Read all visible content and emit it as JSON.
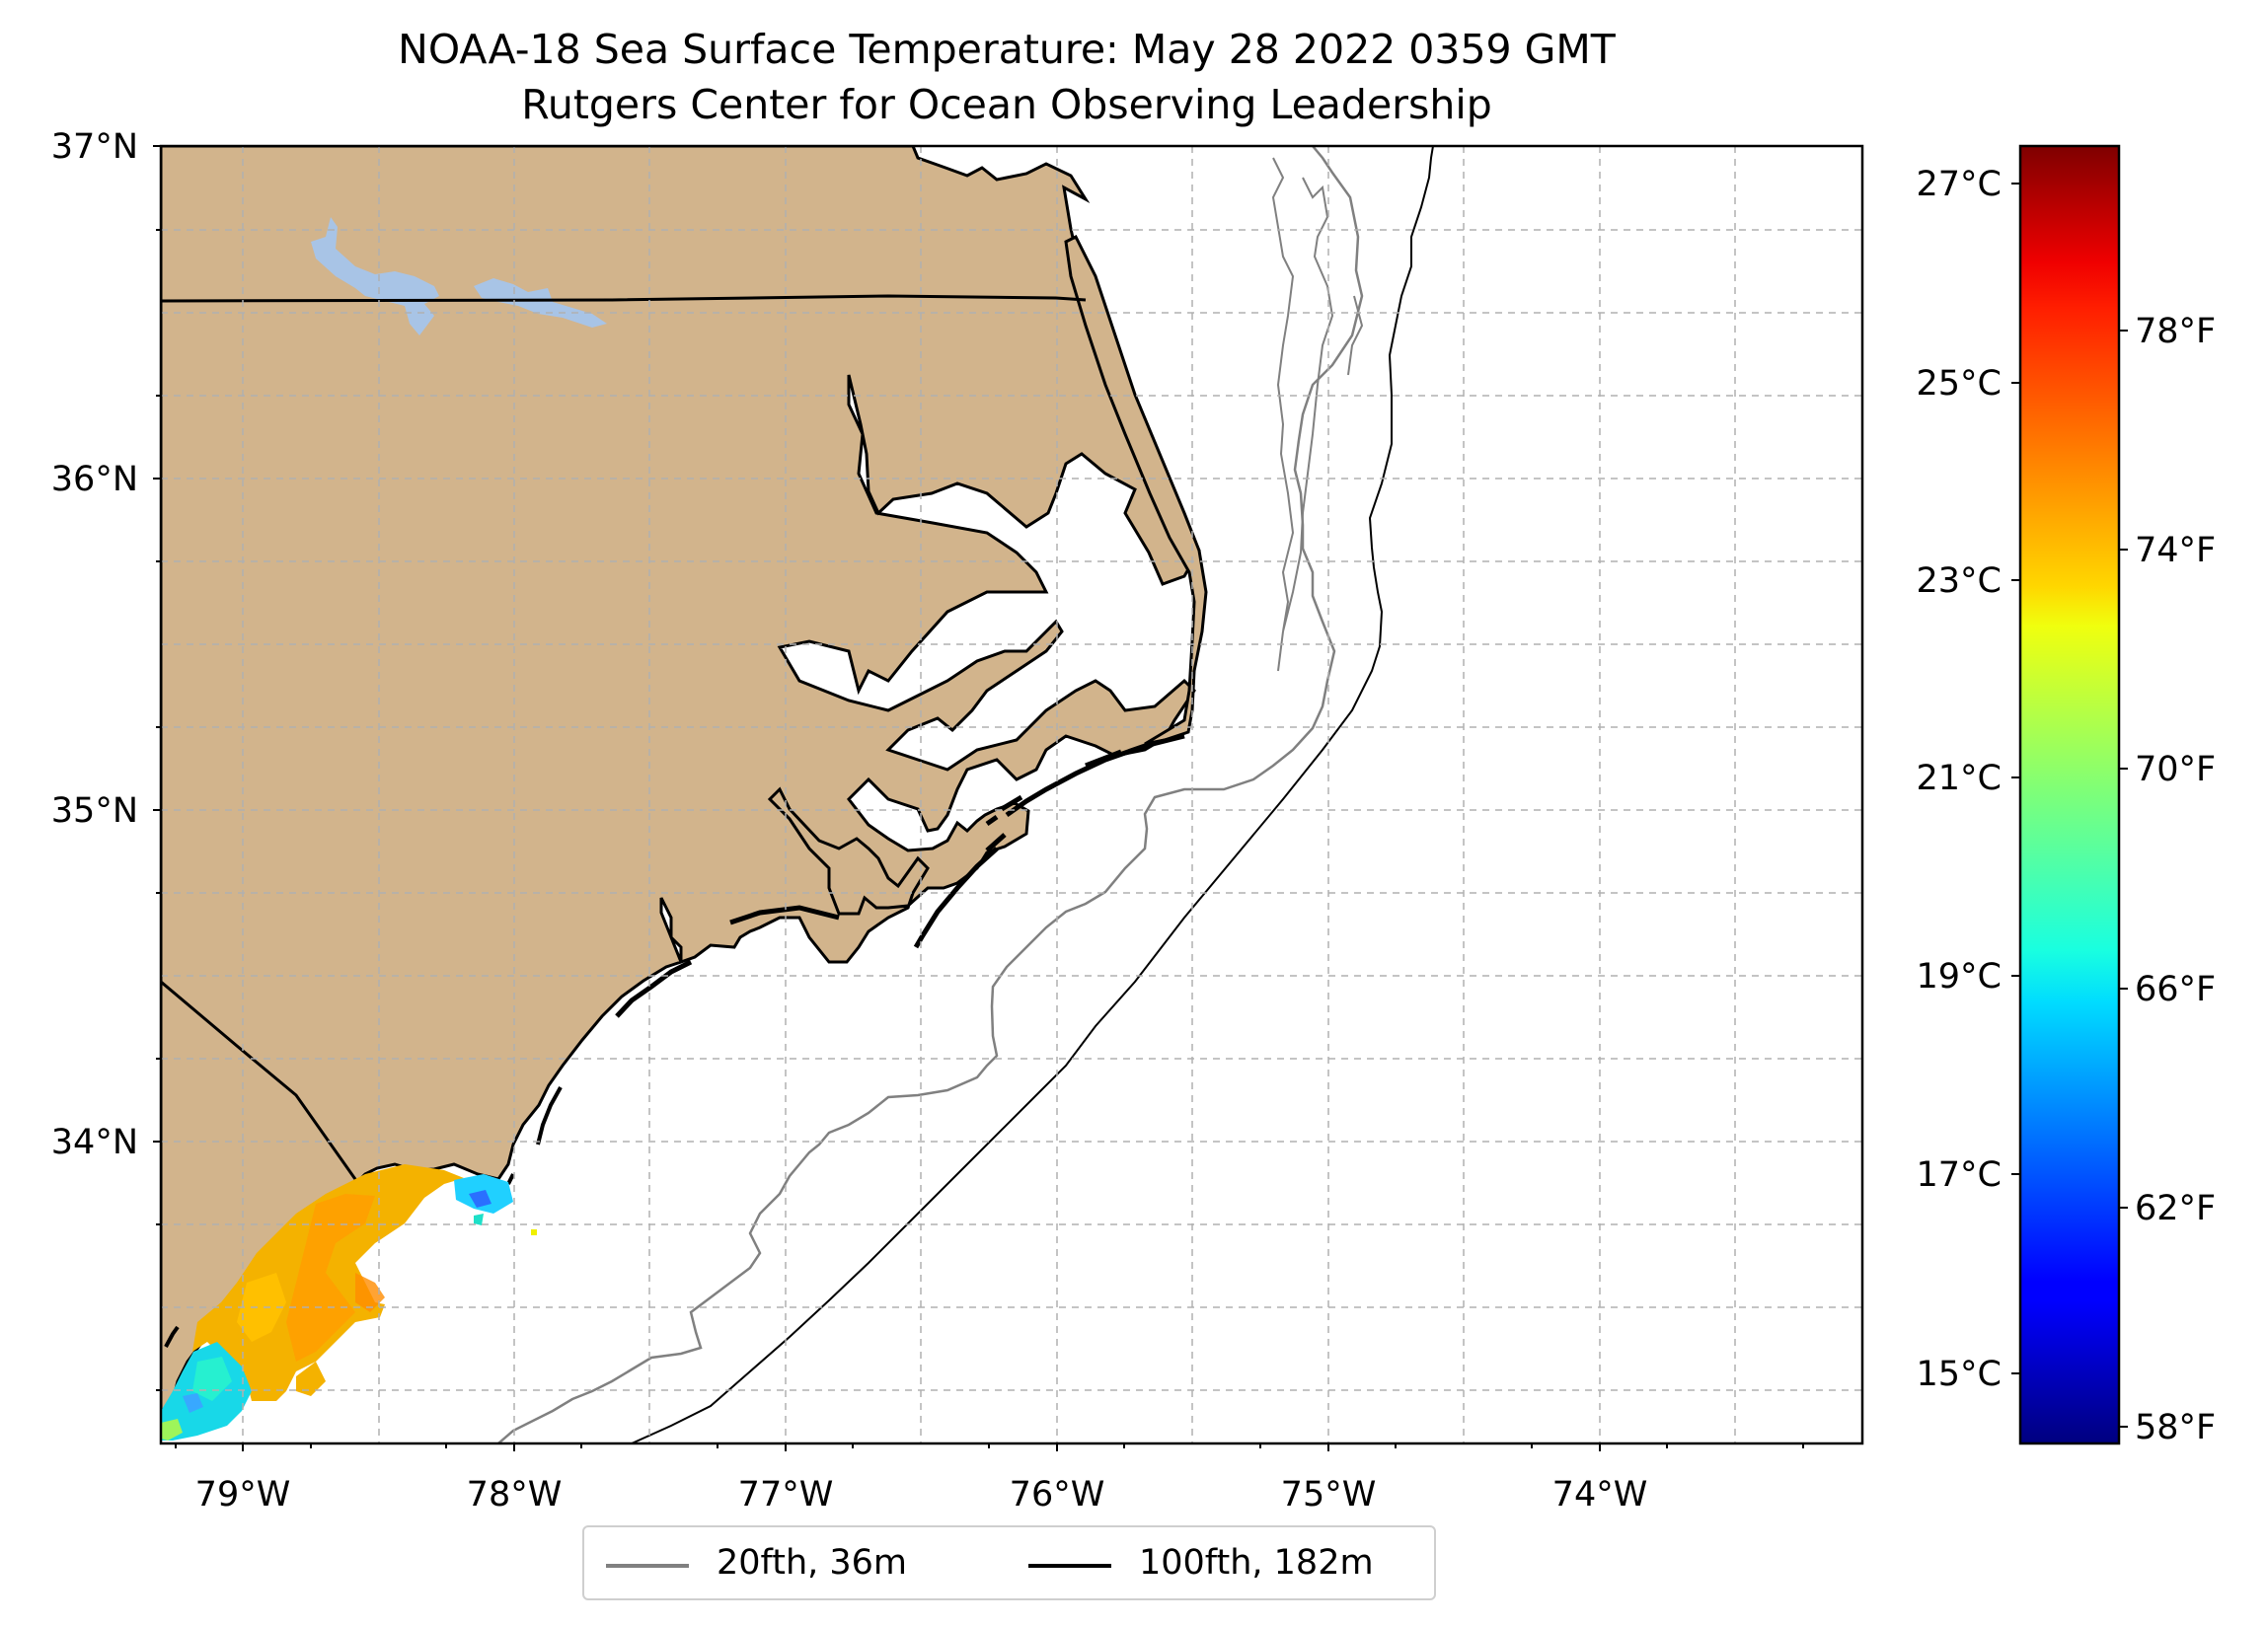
{
  "title": "NOAA-18 Sea Surface Temperature: May 28 2022 0359 GMT",
  "subtitle": "Rutgers Center for Ocean Observing Leadership",
  "map": {
    "lon_range": [
      -79.3,
      -73.0
    ],
    "lat_range": [
      33.1,
      37.0
    ],
    "lon_ticks": [
      "79°W",
      "78°W",
      "77°W",
      "76°W",
      "75°W",
      "74°W"
    ],
    "lat_ticks": [
      "37°N",
      "36°N",
      "35°N",
      "34°N"
    ],
    "land_color": "#d2b48c",
    "water_color": "#ffffff",
    "lake_color": "#a8c4e6",
    "gridlines": true
  },
  "colorbar": {
    "colormap": "jet",
    "celsius_ticks": [
      "27°C",
      "25°C",
      "23°C",
      "21°C",
      "19°C",
      "17°C",
      "15°C"
    ],
    "fahrenheit_ticks": [
      "78°F",
      "74°F",
      "70°F",
      "66°F",
      "62°F",
      "58°F"
    ],
    "range_f": [
      57.6,
      81.0
    ]
  },
  "legend": {
    "items": [
      {
        "label": "20fth, 36m",
        "color": "#808080"
      },
      {
        "label": "100fth, 182m",
        "color": "#000000"
      }
    ]
  },
  "sst_patch": {
    "note_color_warm": "#f5b300",
    "note_color_cool": "#22d8e0"
  }
}
